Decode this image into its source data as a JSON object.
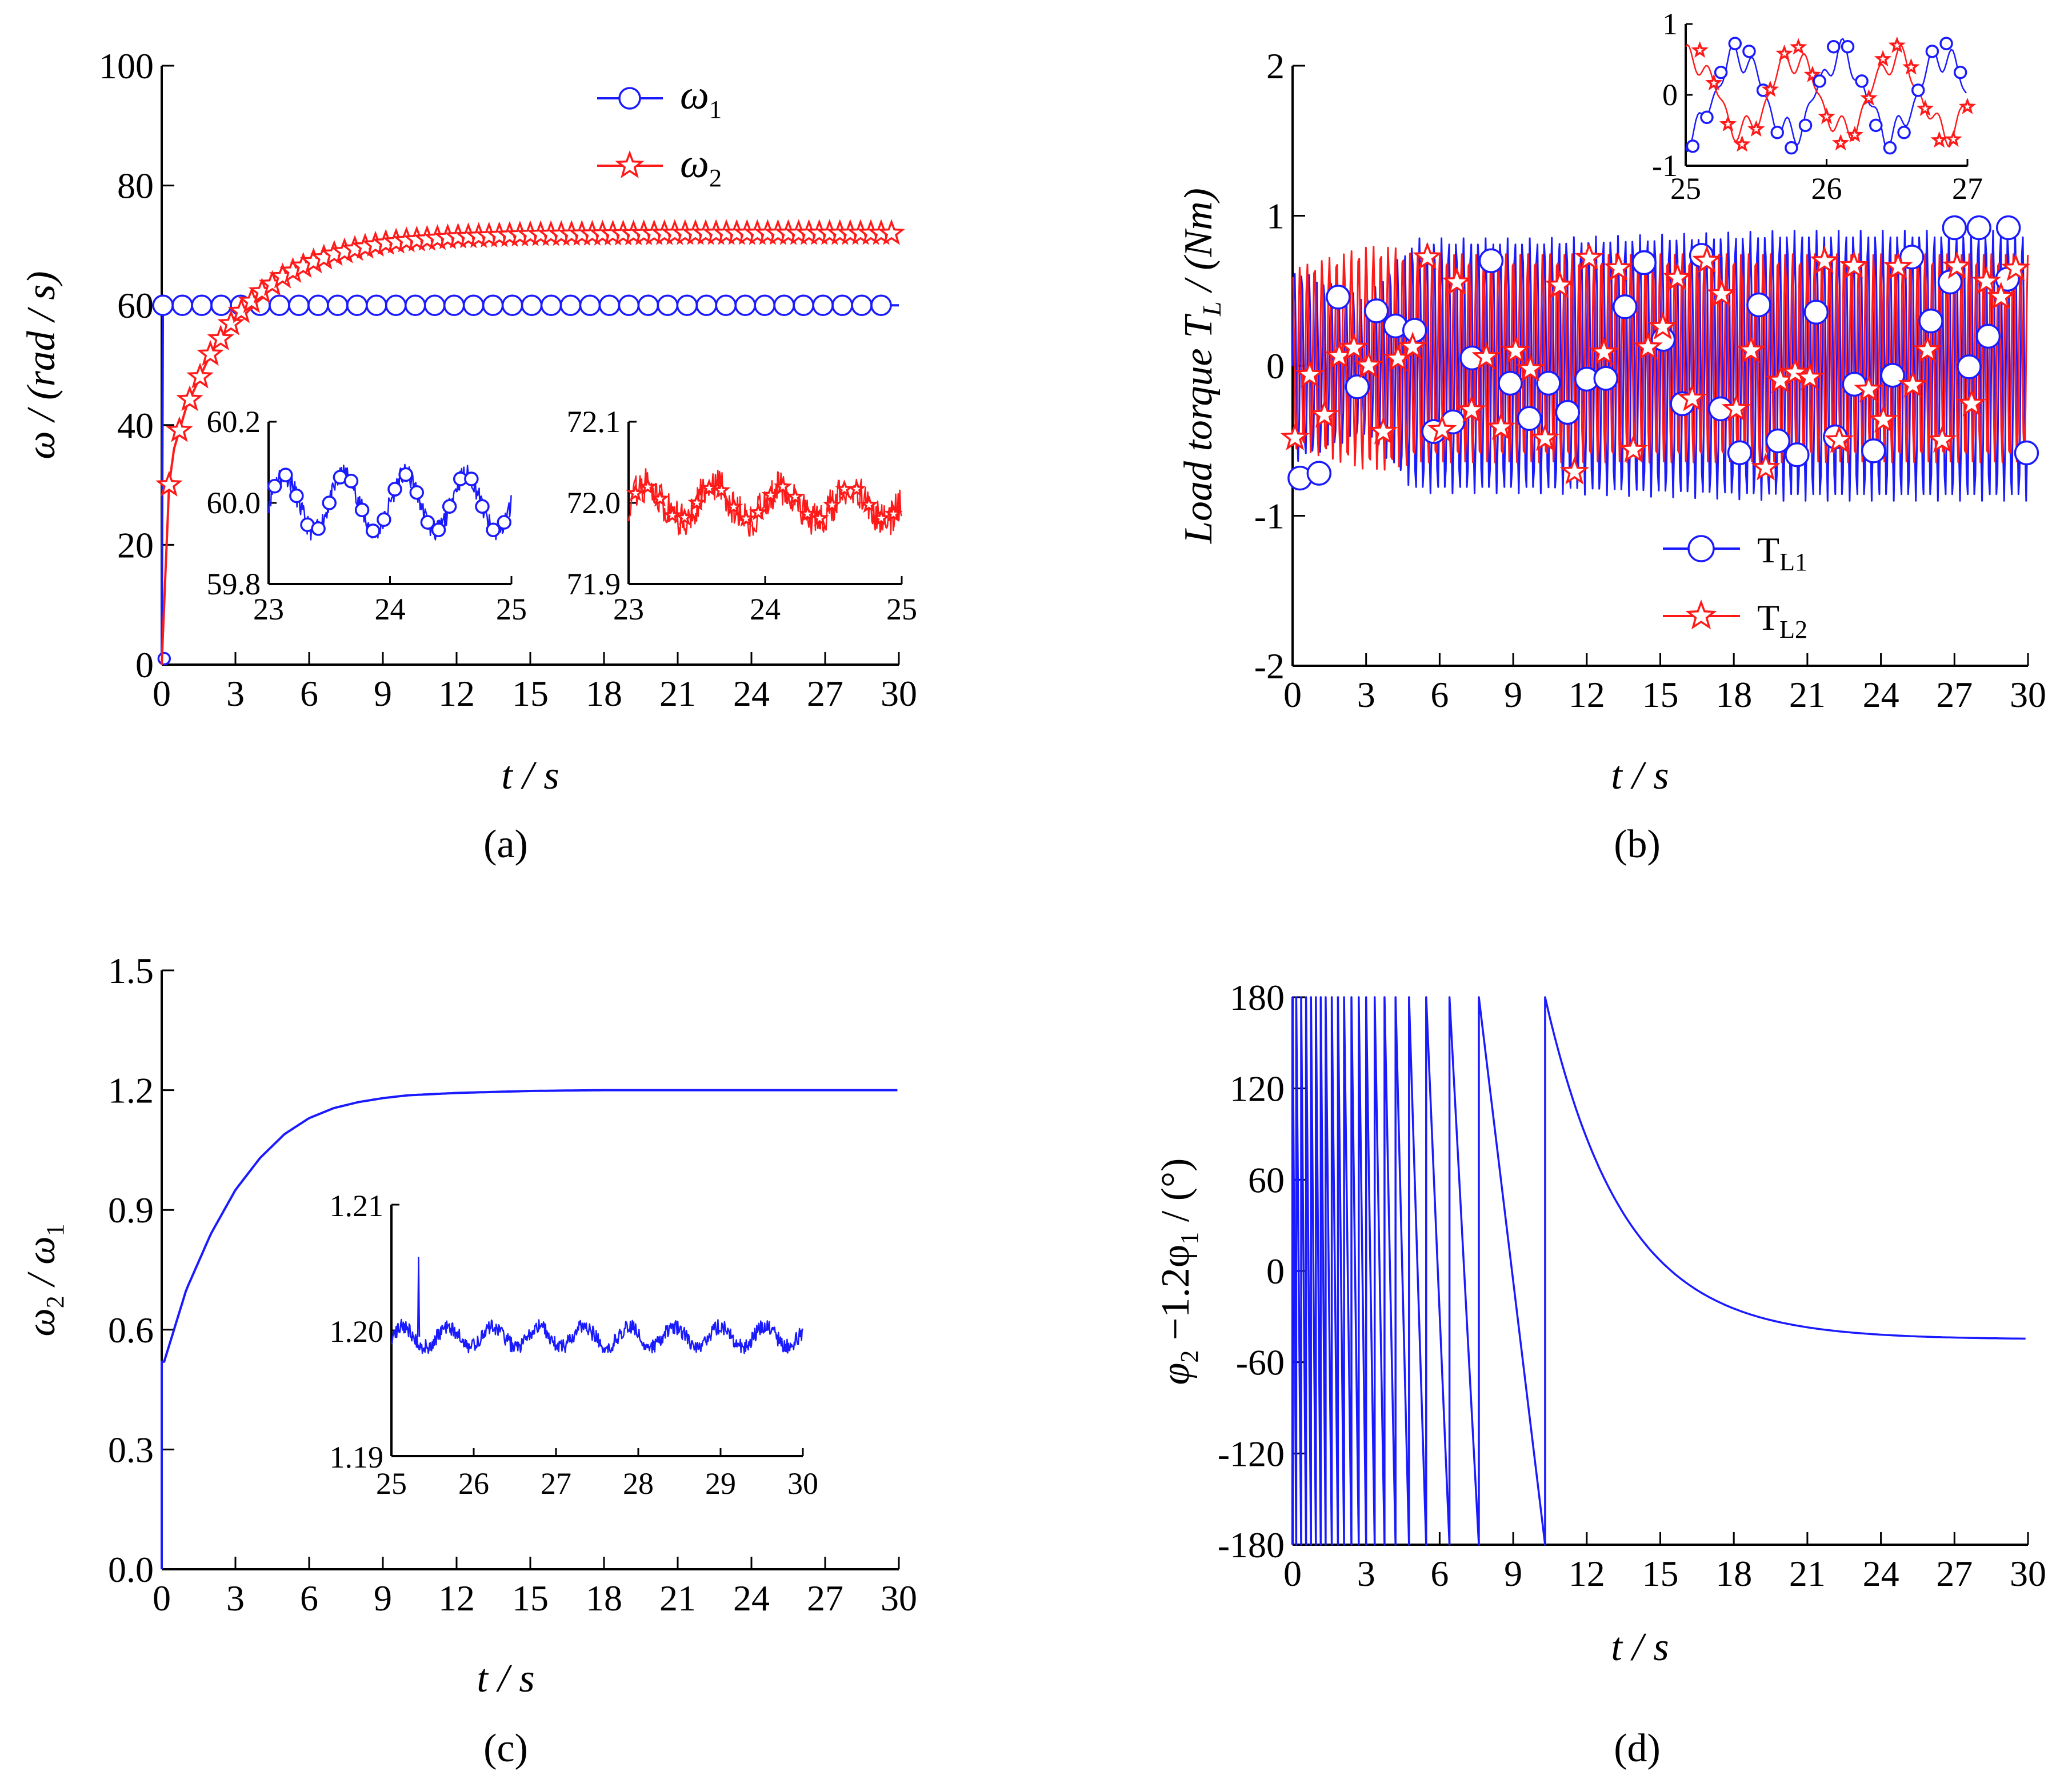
{
  "colors": {
    "blue": "#1a1aff",
    "red": "#ff1a1a",
    "axis": "#000000"
  },
  "chart_data": [
    {
      "id": "a",
      "caption": "(a)",
      "type": "line",
      "xlabel": "t / s",
      "ylabel": "ω / (rad / s)",
      "xlim": [
        0,
        30
      ],
      "ylim": [
        0,
        100
      ],
      "xticks": [
        0,
        3,
        6,
        9,
        12,
        15,
        18,
        21,
        24,
        27,
        30
      ],
      "yticks": [
        0,
        20,
        40,
        60,
        80,
        100
      ],
      "legend": {
        "placement": "top-right"
      },
      "series": [
        {
          "name": "ω1",
          "color": "#1a1aff",
          "marker": "circle",
          "x": [
            0,
            0.05,
            0.1,
            0.15,
            0.2,
            30
          ],
          "y": [
            0,
            60,
            60,
            60,
            60,
            60
          ]
        },
        {
          "name": "ω2",
          "color": "#ff1a1a",
          "marker": "star",
          "x": [
            0,
            0.3,
            0.5,
            1,
            2,
            3,
            4,
            5,
            6,
            7,
            8,
            9,
            10,
            12,
            15,
            18,
            21,
            24,
            27,
            30
          ],
          "y": [
            0,
            30,
            36,
            43,
            52,
            58,
            62,
            65,
            67,
            68.5,
            69.5,
            70.3,
            70.8,
            71.4,
            71.8,
            71.9,
            72,
            72,
            72,
            72
          ]
        }
      ],
      "insets": [
        {
          "xlim": [
            23,
            25
          ],
          "ylim": [
            59.8,
            60.2
          ],
          "xticks": [
            23,
            24,
            25
          ],
          "yticks": [
            "59.8",
            "60.0",
            "60.2"
          ],
          "series_index": 0,
          "mean": 60.0,
          "amplitude": 0.07,
          "period": 0.5
        },
        {
          "xlim": [
            23,
            25
          ],
          "ylim": [
            71.9,
            72.1
          ],
          "xticks": [
            23,
            24,
            25
          ],
          "yticks": [
            "71.9",
            "72.0",
            "72.1"
          ],
          "series_index": 1,
          "mean": 72.0,
          "amplitude": 0.02,
          "period": 0.5
        }
      ]
    },
    {
      "id": "b",
      "caption": "(b)",
      "type": "line",
      "xlabel": "t / s",
      "ylabel": "Load torque T_L / (Nm)",
      "xlim": [
        0,
        30
      ],
      "ylim": [
        -2,
        2
      ],
      "xticks": [
        0,
        3,
        6,
        9,
        12,
        15,
        18,
        21,
        24,
        27,
        30
      ],
      "yticks": [
        -2,
        -1,
        0,
        1,
        2
      ],
      "legend": {
        "placement": "bottom-center"
      },
      "series": [
        {
          "name": "T",
          "subscript": "L1",
          "color": "#1a1aff",
          "marker": "circle",
          "envelope_t": [
            0,
            3,
            5,
            6,
            10,
            20,
            30
          ],
          "envelope_a": [
            0.65,
            0.45,
            0.85,
            0.85,
            0.85,
            0.9,
            0.9
          ]
        },
        {
          "name": "T",
          "subscript": "L2",
          "color": "#ff1a1a",
          "marker": "star",
          "envelope_t": [
            0,
            3,
            4,
            5,
            6,
            10,
            20,
            30
          ],
          "envelope_a": [
            0.6,
            0.75,
            0.75,
            0.7,
            0.7,
            0.7,
            0.7,
            0.7
          ]
        }
      ],
      "insets": [
        {
          "xlim": [
            25,
            27
          ],
          "ylim": [
            -1,
            1
          ],
          "xticks": [
            25,
            26,
            27
          ],
          "yticks": [
            "-1",
            "0",
            "1"
          ]
        }
      ]
    },
    {
      "id": "c",
      "caption": "(c)",
      "type": "line",
      "xlabel": "t / s",
      "ylabel": "ω2 / ω1",
      "xlim": [
        0,
        30
      ],
      "ylim": [
        0,
        1.5
      ],
      "xticks": [
        0,
        3,
        6,
        9,
        12,
        15,
        18,
        21,
        24,
        27,
        30
      ],
      "yticks": [
        "0.0",
        "0.3",
        "0.6",
        "0.9",
        "1.2",
        "1.5"
      ],
      "series": [
        {
          "name": "",
          "color": "#1a1aff",
          "x": [
            0,
            0.1,
            0.5,
            1,
            2,
            3,
            4,
            5,
            6,
            7,
            8,
            9,
            10,
            12,
            15,
            18,
            21,
            24,
            27,
            30
          ],
          "y": [
            0,
            0.52,
            0.6,
            0.7,
            0.84,
            0.95,
            1.03,
            1.09,
            1.13,
            1.155,
            1.17,
            1.18,
            1.187,
            1.193,
            1.198,
            1.2,
            1.2,
            1.2,
            1.2,
            1.2
          ]
        }
      ],
      "insets": [
        {
          "xlim": [
            25,
            30
          ],
          "ylim": [
            1.19,
            1.21
          ],
          "xticks": [
            25,
            26,
            27,
            28,
            29,
            30
          ],
          "yticks": [
            "1.19",
            "1.20",
            "1.21"
          ],
          "mean": 1.1995,
          "amplitude": 0.0008,
          "period": 0.55
        }
      ]
    },
    {
      "id": "d",
      "caption": "(d)",
      "type": "line",
      "xlabel": "t / s",
      "ylabel": "φ2 −1.2φ1 / (°)",
      "xlim": [
        0,
        30
      ],
      "ylim": [
        -180,
        180
      ],
      "xticks": [
        0,
        3,
        6,
        9,
        12,
        15,
        18,
        21,
        24,
        27,
        30
      ],
      "yticks": [
        -180,
        -120,
        -60,
        0,
        60,
        120,
        180
      ],
      "series": [
        {
          "name": "",
          "color": "#1a1aff",
          "wrap_times": [
            0.15,
            0.35,
            0.55,
            0.75,
            0.95,
            1.15,
            1.35,
            1.6,
            1.85,
            2.1,
            2.4,
            2.7,
            3.0,
            3.35,
            3.75,
            4.2,
            4.75,
            5.45,
            6.4,
            7.6,
            10.3
          ],
          "final_value": -45,
          "tau": 3.2
        }
      ]
    }
  ]
}
